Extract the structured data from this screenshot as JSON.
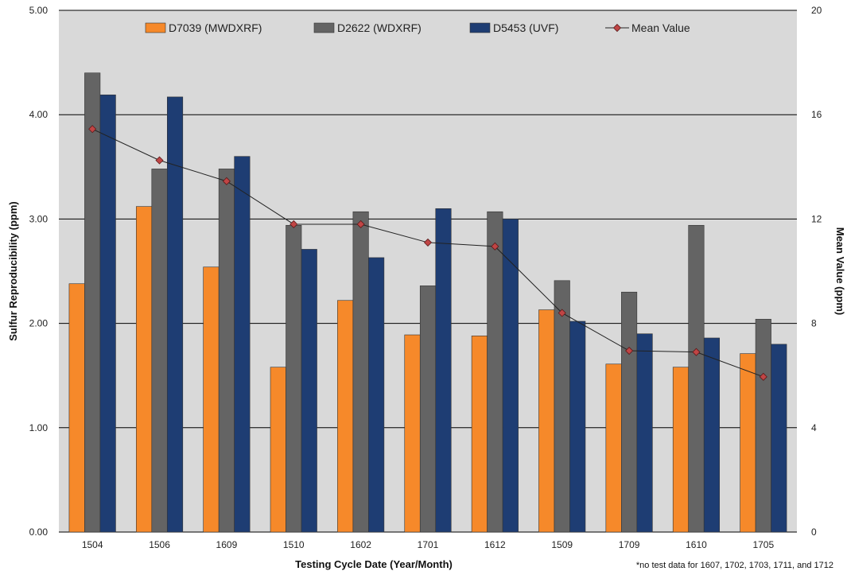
{
  "chart_data": {
    "type": "bar",
    "categories": [
      "1504",
      "1506",
      "1609",
      "1510",
      "1602",
      "1701",
      "1612",
      "1509",
      "1709",
      "1610",
      "1705"
    ],
    "series": [
      {
        "name": "D7039 (MWDXRF)",
        "color": "#f6892a",
        "values": [
          2.38,
          3.12,
          2.54,
          1.58,
          2.22,
          1.89,
          1.88,
          2.13,
          1.61,
          1.58,
          1.71
        ]
      },
      {
        "name": "D2622 (WDXRF)",
        "color": "#646464",
        "values": [
          4.4,
          3.48,
          3.48,
          2.94,
          3.07,
          2.36,
          3.07,
          2.41,
          2.3,
          2.94,
          2.04
        ]
      },
      {
        "name": "D5453 (UVF)",
        "color": "#1e3d73",
        "values": [
          4.19,
          4.17,
          3.6,
          2.71,
          2.63,
          3.1,
          3.0,
          2.02,
          1.9,
          1.86,
          1.8
        ]
      }
    ],
    "line_series": {
      "name": "Mean Value",
      "axis": "right",
      "color": "#c04545",
      "values": [
        15.45,
        14.25,
        13.45,
        11.8,
        11.8,
        11.1,
        10.95,
        8.4,
        6.95,
        6.9,
        5.95
      ]
    },
    "xlabel": "Testing Cycle Date (Year/Month)",
    "ylabel": "Sulfur Reproducibility (ppm)",
    "y2label": "Mean Value (ppm)",
    "ylim": [
      0,
      5
    ],
    "y2lim": [
      0,
      20
    ],
    "yticks": [
      "0.00",
      "1.00",
      "2.00",
      "3.00",
      "4.00",
      "5.00"
    ],
    "y2ticks": [
      "0",
      "4",
      "8",
      "12",
      "16",
      "20"
    ],
    "grid": true,
    "legend": "top",
    "plot_background": "#d9d9d9",
    "footnote": "*no test data for 1607, 1702, 1703, 1711, and 1712"
  }
}
